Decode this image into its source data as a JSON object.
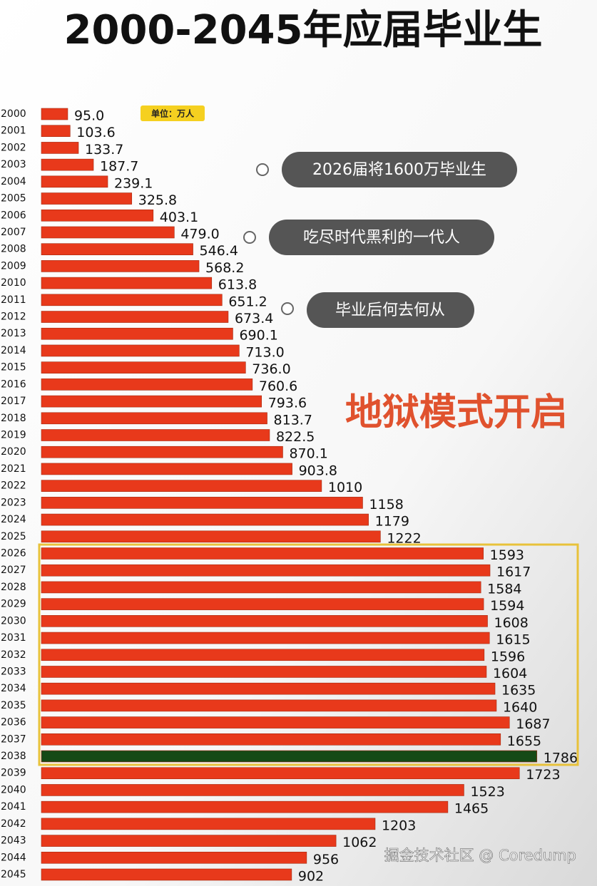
{
  "chart_data": {
    "type": "bar",
    "orientation": "horizontal",
    "title": "2000-2045年应届毕业生",
    "unit": "单位：万人",
    "annotations": [
      "2026届将1600万毕业生",
      "吃尽时代黑利的一代人",
      "毕业后何去何从",
      "地狱模式开启"
    ],
    "watermark": "掘金技术社区 @ Coredump",
    "categories": [
      "2000",
      "2001",
      "2002",
      "2003",
      "2004",
      "2005",
      "2006",
      "2007",
      "2008",
      "2009",
      "2010",
      "2011",
      "2012",
      "2013",
      "2014",
      "2015",
      "2016",
      "2017",
      "2018",
      "2019",
      "2020",
      "2021",
      "2022",
      "2023",
      "2024",
      "2025",
      "2026",
      "2027",
      "2028",
      "2029",
      "2030",
      "2031",
      "2032",
      "2033",
      "2034",
      "2035",
      "2036",
      "2037",
      "2038",
      "2039",
      "2040",
      "2041",
      "2042",
      "2043",
      "2044",
      "2045"
    ],
    "values": [
      95.0,
      103.6,
      133.7,
      187.7,
      239.1,
      325.8,
      403.1,
      479.0,
      546.4,
      568.2,
      613.8,
      651.2,
      673.4,
      690.1,
      713.0,
      736.0,
      760.6,
      793.6,
      813.7,
      822.5,
      870.1,
      903.8,
      1010,
      1158,
      1179,
      1222,
      1593,
      1617,
      1584,
      1594,
      1608,
      1615,
      1596,
      1604,
      1635,
      1640,
      1687,
      1655,
      1786,
      1723,
      1523,
      1465,
      1203,
      1062,
      956,
      902
    ],
    "value_labels": [
      "95.0",
      "103.6",
      "133.7",
      "187.7",
      "239.1",
      "325.8",
      "403.1",
      "479.0",
      "546.4",
      "568.2",
      "613.8",
      "651.2",
      "673.4",
      "690.1",
      "713.0",
      "736.0",
      "760.6",
      "793.6",
      "813.7",
      "822.5",
      "870.1",
      "903.8",
      "1010",
      "1158",
      "1179",
      "1222",
      "1593",
      "1617",
      "1584",
      "1594",
      "1608",
      "1615",
      "1596",
      "1604",
      "1635",
      "1640",
      "1687",
      "1655",
      "1786",
      "1723",
      "1523",
      "1465",
      "1203",
      "1062",
      "956",
      "902"
    ],
    "color": "#e8391b",
    "colors": [
      "#e8391b",
      "#e8391b",
      "#e8391b",
      "#e8391b",
      "#e8391b",
      "#e8391b",
      "#e8391b",
      "#e8391b",
      "#e8391b",
      "#e8391b",
      "#e8391b",
      "#e8391b",
      "#e8391b",
      "#e8391b",
      "#e8391b",
      "#e8391b",
      "#e8391b",
      "#e8391b",
      "#e8391b",
      "#e8391b",
      "#e8391b",
      "#e8391b",
      "#e8391b",
      "#e8391b",
      "#e8391b",
      "#e8391b",
      "#e8391b",
      "#e8391b",
      "#e8391b",
      "#e8391b",
      "#e8391b",
      "#e8391b",
      "#e8391b",
      "#e8391b",
      "#e8391b",
      "#e8391b",
      "#e8391b",
      "#e8391b",
      "#154a16",
      "#e8391b",
      "#e8391b",
      "#e8391b",
      "#e8391b",
      "#e8391b",
      "#e8391b",
      "#e8391b"
    ]
  }
}
